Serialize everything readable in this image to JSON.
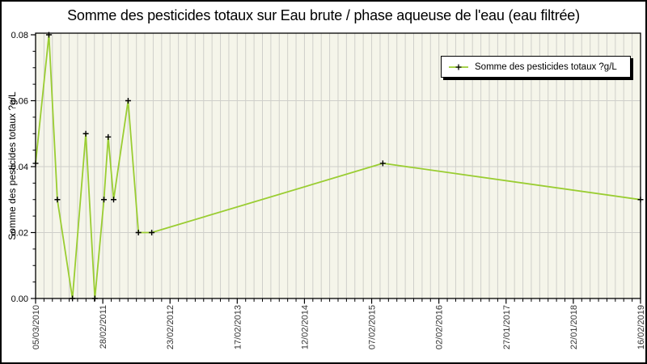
{
  "title": "Somme des pesticides totaux sur Eau brute / phase aqueuse de l'eau (eau filtrée)",
  "legend": {
    "label": "Somme des pesticides totaux ?g/L"
  },
  "colors": {
    "page_bg": "#ffffff",
    "plot_bg": "#f5f5ea",
    "grid": "#cfcfca",
    "frame": "#000000",
    "line": "#9acd32",
    "marker": "#000000",
    "tick_label": "#333333"
  },
  "chart_data": {
    "type": "line",
    "title": "Somme des pesticides totaux sur Eau brute / phase aqueuse de l'eau (eau filtrée)",
    "xlabel": "",
    "ylabel": "Somme des pesticides totaux ?g/L",
    "ylim": [
      0,
      0.08
    ],
    "y_tick_values": [
      0,
      0.02,
      0.04,
      0.06,
      0.08
    ],
    "y_tick_labels": [
      "0.00",
      "0.02",
      "0.04",
      "0.06",
      "0.08"
    ],
    "y_minor_step": 0.005,
    "x_tick_labels": [
      "05/03/2010",
      "28/02/2011",
      "23/02/2012",
      "17/02/2013",
      "12/02/2014",
      "07/02/2015",
      "02/02/2016",
      "27/01/2017",
      "22/01/2018",
      "16/02/2019"
    ],
    "x_minor_per_major": 8,
    "grid": true,
    "legend_position": "top-right",
    "series": [
      {
        "name": "Somme des pesticides totaux ?g/L",
        "color": "#9acd32",
        "marker": "plus",
        "points": [
          {
            "x_frac": 0.0,
            "date_est": "05/03/2010",
            "value": 0.041
          },
          {
            "x_frac": 0.022,
            "date_est": "14/05/2010",
            "value": 0.08
          },
          {
            "x_frac": 0.036,
            "date_est": "30/06/2010",
            "value": 0.03
          },
          {
            "x_frac": 0.061,
            "date_est": "18/09/2010",
            "value": 0.0
          },
          {
            "x_frac": 0.083,
            "date_est": "28/11/2010",
            "value": 0.05
          },
          {
            "x_frac": 0.098,
            "date_est": "14/01/2011",
            "value": 0.0
          },
          {
            "x_frac": 0.113,
            "date_est": "04/03/2011",
            "value": 0.03
          },
          {
            "x_frac": 0.12,
            "date_est": "27/03/2011",
            "value": 0.049
          },
          {
            "x_frac": 0.129,
            "date_est": "25/04/2011",
            "value": 0.03
          },
          {
            "x_frac": 0.153,
            "date_est": "11/07/2011",
            "value": 0.06
          },
          {
            "x_frac": 0.17,
            "date_est": "04/09/2011",
            "value": 0.02
          },
          {
            "x_frac": 0.192,
            "date_est": "13/11/2011",
            "value": 0.02
          },
          {
            "x_frac": 0.574,
            "date_est": "10/04/2015",
            "value": 0.041
          },
          {
            "x_frac": 1.0,
            "date_est": "16/02/2019",
            "value": 0.03
          }
        ]
      }
    ]
  }
}
